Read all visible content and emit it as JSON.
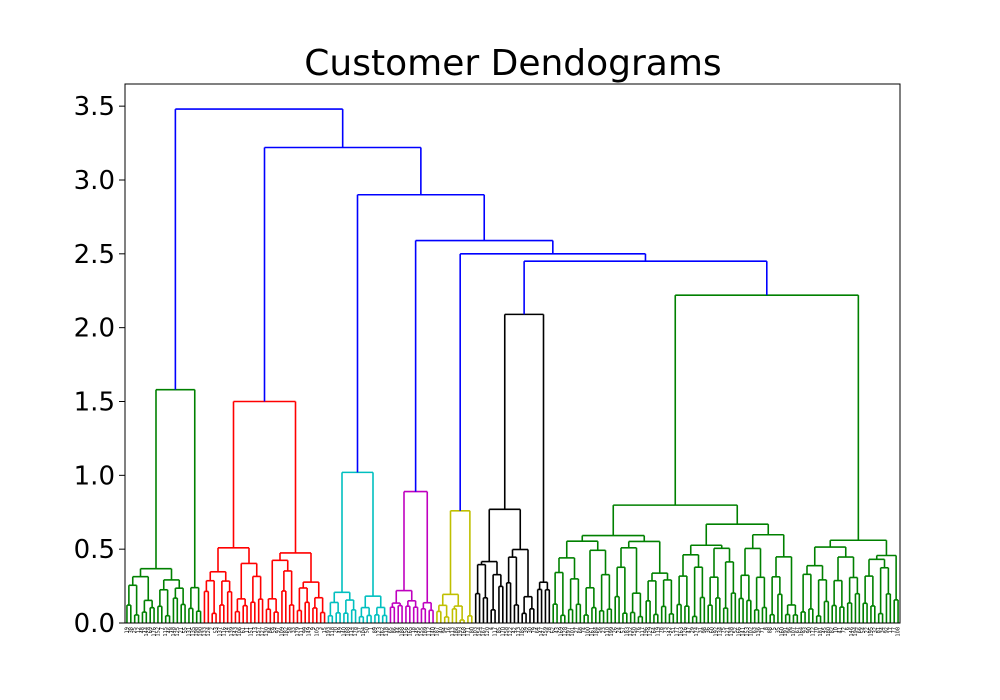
{
  "chart_data": {
    "type": "dendrogram",
    "title": "Customer Dendograms",
    "xlabel": "",
    "ylabel": "",
    "ylim": [
      0,
      3.65
    ],
    "y_ticks": [
      "0.0",
      "0.5",
      "1.0",
      "1.5",
      "2.0",
      "2.5",
      "3.0",
      "3.5"
    ],
    "y_tick_values": [
      0,
      0.5,
      1.0,
      1.5,
      2.0,
      2.5,
      3.0,
      3.5
    ],
    "grid": false,
    "leaf_count": 200,
    "colors": {
      "root": "#0000ff",
      "cluster1": "#008000",
      "cluster2": "#ff0000",
      "cluster3": "#00bfbf",
      "cluster4": "#bf00bf",
      "cluster5": "#bfbf00",
      "cluster6": "#000000",
      "cluster7": "#008000"
    },
    "clusters": [
      {
        "color_key": "cluster1",
        "leaves": 20,
        "top": 1.58
      },
      {
        "color_key": "cluster2",
        "leaves": 32,
        "top": 1.5
      },
      {
        "color_key": "cluster3",
        "leaves": 16,
        "top": 1.02
      },
      {
        "color_key": "cluster4",
        "leaves": 12,
        "top": 0.89
      },
      {
        "color_key": "cluster5",
        "leaves": 10,
        "top": 0.76
      },
      {
        "color_key": "cluster6",
        "leaves": 20,
        "top": 2.09
      },
      {
        "color_key": "cluster7",
        "leaves": 90,
        "top": 2.22
      }
    ],
    "root_merges": [
      {
        "name": "merge-6-7",
        "height": 2.45
      },
      {
        "name": "merge-5",
        "height": 2.5
      },
      {
        "name": "merge-4",
        "height": 2.59
      },
      {
        "name": "merge-3",
        "height": 2.9
      },
      {
        "name": "merge-2",
        "height": 3.22
      },
      {
        "name": "merge-1",
        "height": 3.48
      }
    ],
    "leaf_labels": [
      "19",
      "38",
      "25",
      "12",
      "48",
      "144",
      "69",
      "176",
      "152",
      "7",
      "115",
      "46",
      "148",
      "125",
      "21",
      "55",
      "131",
      "135",
      "198",
      "190",
      "133",
      "124",
      "2",
      "53",
      "137",
      "116",
      "14",
      "139",
      "143",
      "106",
      "61",
      "11",
      "151",
      "13",
      "157",
      "127",
      "130",
      "84",
      "59",
      "97",
      "109",
      "182",
      "58",
      "33",
      "179",
      "111",
      "99",
      "149",
      "9",
      "105",
      "3",
      "15",
      "193",
      "118",
      "20",
      "49",
      "140",
      "188",
      "114",
      "178",
      "37",
      "104",
      "50",
      "1",
      "89",
      "123",
      "162",
      "118",
      "65",
      "86",
      "44",
      "188",
      "156",
      "165",
      "18",
      "145",
      "155",
      "189",
      "112",
      "140",
      "187",
      "40",
      "94",
      "16",
      "113",
      "186",
      "193",
      "168",
      "171",
      "80",
      "103",
      "154",
      "167",
      "120",
      "4",
      "117",
      "85",
      "170",
      "158",
      "122",
      "42",
      "173",
      "185",
      "39",
      "30",
      "79",
      "64",
      "147",
      "159",
      "28",
      "62",
      "43",
      "169",
      "128",
      "197",
      "101",
      "27",
      "68",
      "74",
      "100",
      "161",
      "184",
      "56",
      "23",
      "110",
      "199",
      "26",
      "24",
      "57",
      "183",
      "132",
      "150",
      "76",
      "117",
      "196",
      "129",
      "64",
      "119",
      "78",
      "73",
      "142",
      "51",
      "177",
      "163",
      "126",
      "47",
      "29",
      "174",
      "31",
      "98",
      "36",
      "60",
      "192",
      "134",
      "75",
      "121",
      "138",
      "52",
      "166",
      "141",
      "153",
      "102",
      "63",
      "136",
      "71",
      "8",
      "88",
      "5",
      "35",
      "160",
      "191",
      "96",
      "107",
      "67",
      "164",
      "93",
      "90",
      "172",
      "70",
      "181",
      "45",
      "180",
      "82",
      "10",
      "41",
      "72",
      "6",
      "146",
      "194",
      "66",
      "54",
      "22",
      "195",
      "32",
      "81",
      "34",
      "92",
      "17",
      "77",
      "108"
    ]
  }
}
